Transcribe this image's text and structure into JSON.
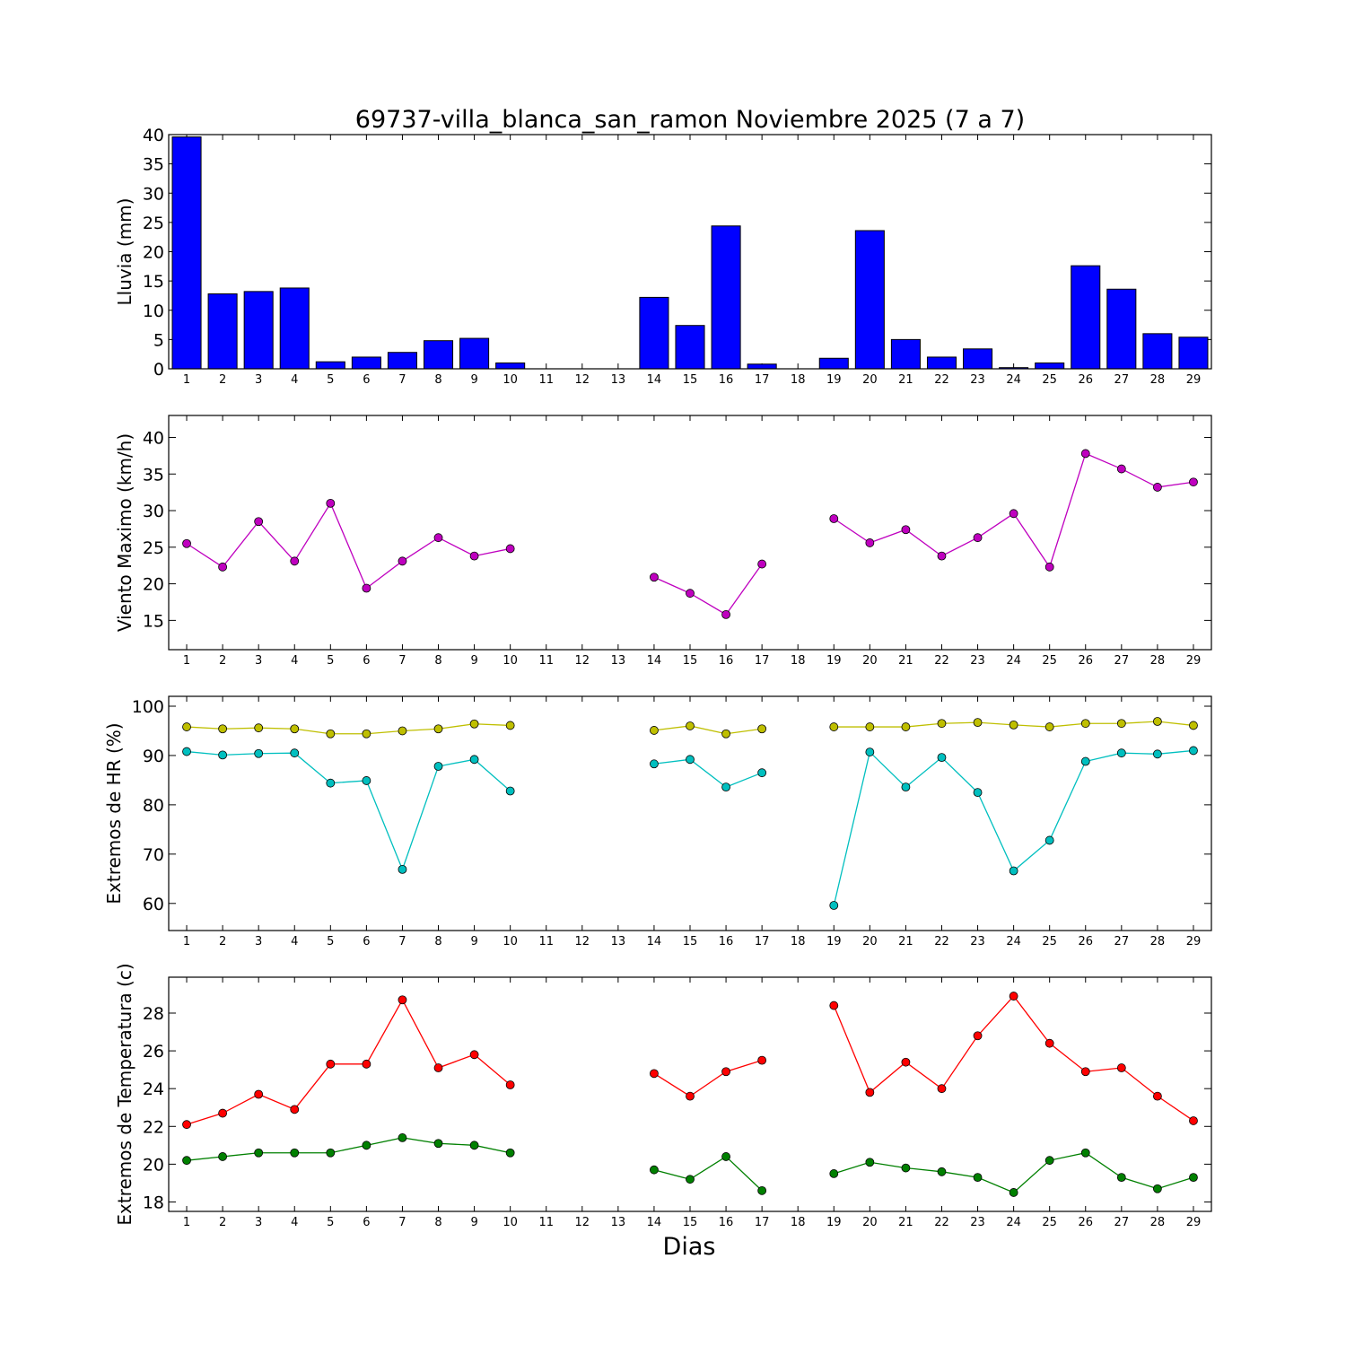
{
  "figure": {
    "title": "69737-villa_blanca_san_ramon Noviembre 2025  (7 a 7)",
    "xlabel": "Dias"
  },
  "chart_data": [
    {
      "type": "bar",
      "ylabel": "Lluvia (mm)",
      "ylim": [
        0,
        40
      ],
      "yticks": [
        0,
        5,
        10,
        15,
        20,
        25,
        30,
        35,
        40
      ],
      "categories": [
        1,
        2,
        3,
        4,
        5,
        6,
        7,
        8,
        9,
        10,
        11,
        12,
        13,
        14,
        15,
        16,
        17,
        18,
        19,
        20,
        21,
        22,
        23,
        24,
        25,
        26,
        27,
        28,
        29
      ],
      "values": [
        39.6,
        12.8,
        13.2,
        13.8,
        1.2,
        2.0,
        2.8,
        4.8,
        5.2,
        1.0,
        0,
        0,
        0,
        12.2,
        7.4,
        24.4,
        0.8,
        0,
        1.8,
        23.6,
        5.0,
        2.0,
        3.4,
        0.2,
        1.0,
        17.6,
        13.6,
        6.0,
        5.4
      ],
      "color": "#0000ff",
      "grid": false
    },
    {
      "type": "line",
      "ylabel": "Viento Maximo (km/h)",
      "ylim": [
        11,
        43
      ],
      "yticks": [
        15,
        20,
        25,
        30,
        35,
        40
      ],
      "x": [
        1,
        2,
        3,
        4,
        5,
        6,
        7,
        8,
        9,
        10,
        11,
        12,
        13,
        14,
        15,
        16,
        17,
        18,
        19,
        20,
        21,
        22,
        23,
        24,
        25,
        26,
        27,
        28,
        29
      ],
      "series": [
        {
          "color": "#bf00bf",
          "values": [
            25.5,
            22.3,
            28.5,
            23.1,
            31.0,
            19.4,
            23.1,
            26.3,
            23.8,
            24.8,
            null,
            null,
            null,
            20.9,
            18.7,
            15.8,
            22.7,
            null,
            28.9,
            25.6,
            27.4,
            23.8,
            26.3,
            29.6,
            22.3,
            37.8,
            35.7,
            33.2,
            33.9
          ]
        }
      ],
      "grid": false
    },
    {
      "type": "line",
      "ylabel": "Extremos de HR (%)",
      "ylim": [
        54.5,
        102
      ],
      "yticks": [
        60,
        70,
        80,
        90,
        100
      ],
      "x": [
        1,
        2,
        3,
        4,
        5,
        6,
        7,
        8,
        9,
        10,
        11,
        12,
        13,
        14,
        15,
        16,
        17,
        18,
        19,
        20,
        21,
        22,
        23,
        24,
        25,
        26,
        27,
        28,
        29
      ],
      "series": [
        {
          "color": "#bfbf00",
          "values": [
            95.8,
            95.4,
            95.6,
            95.4,
            94.4,
            94.4,
            95.0,
            95.4,
            96.4,
            96.1,
            null,
            null,
            null,
            95.1,
            96.0,
            94.4,
            95.4,
            null,
            95.8,
            95.8,
            95.8,
            96.5,
            96.7,
            96.2,
            95.8,
            96.5,
            96.5,
            96.9,
            96.1
          ]
        },
        {
          "color": "#00bfbf",
          "values": [
            90.8,
            90.1,
            90.4,
            90.5,
            84.4,
            84.9,
            66.9,
            87.8,
            89.2,
            82.8,
            null,
            null,
            null,
            88.3,
            89.2,
            83.6,
            86.5,
            null,
            59.6,
            90.7,
            83.6,
            89.6,
            82.5,
            66.6,
            72.8,
            88.8,
            90.5,
            90.3,
            91.0
          ]
        }
      ],
      "grid": false
    },
    {
      "type": "line",
      "ylabel": "Extremos de Temperatura (c)",
      "ylim": [
        17.5,
        29.9
      ],
      "yticks": [
        18,
        20,
        22,
        24,
        26,
        28
      ],
      "x": [
        1,
        2,
        3,
        4,
        5,
        6,
        7,
        8,
        9,
        10,
        11,
        12,
        13,
        14,
        15,
        16,
        17,
        18,
        19,
        20,
        21,
        22,
        23,
        24,
        25,
        26,
        27,
        28,
        29
      ],
      "series": [
        {
          "color": "#ff0000",
          "values": [
            22.1,
            22.7,
            23.7,
            22.9,
            25.3,
            25.3,
            28.7,
            25.1,
            25.8,
            24.2,
            null,
            null,
            null,
            24.8,
            23.6,
            24.9,
            25.5,
            null,
            28.4,
            23.8,
            25.4,
            24.0,
            26.8,
            28.9,
            26.4,
            24.9,
            25.1,
            23.6,
            22.3
          ]
        },
        {
          "color": "#008000",
          "values": [
            20.2,
            20.4,
            20.6,
            20.6,
            20.6,
            21.0,
            21.4,
            21.1,
            21.0,
            20.6,
            null,
            null,
            null,
            19.7,
            19.2,
            20.4,
            18.6,
            null,
            19.5,
            20.1,
            19.8,
            19.6,
            19.3,
            18.5,
            20.2,
            20.6,
            19.3,
            18.7,
            19.3
          ]
        }
      ],
      "grid": false
    }
  ]
}
